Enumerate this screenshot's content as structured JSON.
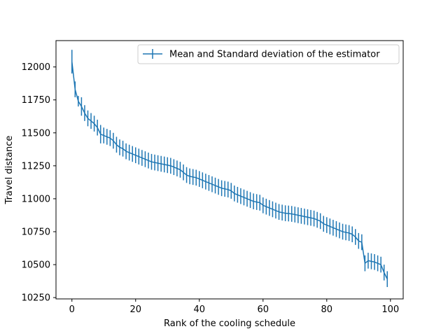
{
  "chart_data": {
    "type": "line",
    "title": "",
    "xlabel": "Rank of the cooling schedule",
    "ylabel": "Travel distance",
    "xlim": [
      -5,
      104
    ],
    "ylim": [
      10240,
      12200
    ],
    "x_ticks": [
      0,
      20,
      40,
      60,
      80,
      100
    ],
    "x_tick_labels": [
      "0",
      "20",
      "40",
      "60",
      "80",
      "100"
    ],
    "y_ticks": [
      10250,
      10500,
      10750,
      11000,
      11250,
      11500,
      11750,
      12000
    ],
    "y_tick_labels": [
      "10250",
      "10500",
      "10750",
      "11000",
      "11250",
      "11500",
      "11750",
      "12000"
    ],
    "grid": false,
    "legend": {
      "position": "top-right",
      "entries": [
        "Mean and Standard deviation of the estimator"
      ]
    },
    "series": [
      {
        "name": "Mean and Standard deviation of the estimator",
        "color": "#1f77b4",
        "x": [
          0,
          1,
          2,
          3,
          4,
          5,
          6,
          7,
          8,
          9,
          10,
          11,
          12,
          13,
          14,
          15,
          16,
          17,
          18,
          19,
          20,
          21,
          22,
          23,
          24,
          25,
          26,
          27,
          28,
          29,
          30,
          31,
          32,
          33,
          34,
          35,
          36,
          37,
          38,
          39,
          40,
          41,
          42,
          43,
          44,
          45,
          46,
          47,
          48,
          49,
          50,
          51,
          52,
          53,
          54,
          55,
          56,
          57,
          58,
          59,
          60,
          61,
          62,
          63,
          64,
          65,
          66,
          67,
          68,
          69,
          70,
          71,
          72,
          73,
          74,
          75,
          76,
          77,
          78,
          79,
          80,
          81,
          82,
          83,
          84,
          85,
          86,
          87,
          88,
          89,
          90,
          91,
          92,
          93,
          94,
          95,
          96,
          97,
          98,
          99
        ],
        "y": [
          12040,
          11830,
          11740,
          11700,
          11650,
          11610,
          11590,
          11570,
          11540,
          11490,
          11480,
          11470,
          11460,
          11440,
          11410,
          11390,
          11380,
          11360,
          11350,
          11340,
          11330,
          11320,
          11310,
          11300,
          11290,
          11280,
          11275,
          11270,
          11265,
          11260,
          11255,
          11250,
          11240,
          11230,
          11220,
          11200,
          11180,
          11170,
          11165,
          11160,
          11150,
          11140,
          11130,
          11120,
          11110,
          11100,
          11090,
          11080,
          11075,
          11070,
          11060,
          11040,
          11030,
          11020,
          11010,
          11000,
          10990,
          10980,
          10975,
          10970,
          10950,
          10940,
          10930,
          10920,
          10910,
          10900,
          10895,
          10890,
          10888,
          10885,
          10880,
          10875,
          10870,
          10865,
          10860,
          10855,
          10850,
          10840,
          10830,
          10810,
          10800,
          10790,
          10780,
          10770,
          10760,
          10750,
          10745,
          10740,
          10730,
          10710,
          10680,
          10670,
          10510,
          10530,
          10525,
          10520,
          10510,
          10500,
          10440,
          10390
        ],
        "yerr": [
          90,
          60,
          40,
          70,
          60,
          60,
          60,
          60,
          60,
          70,
          60,
          60,
          60,
          60,
          60,
          60,
          60,
          60,
          60,
          60,
          60,
          60,
          60,
          60,
          60,
          60,
          60,
          60,
          60,
          60,
          60,
          60,
          60,
          60,
          60,
          60,
          60,
          60,
          60,
          60,
          60,
          60,
          60,
          60,
          60,
          60,
          60,
          60,
          60,
          60,
          60,
          60,
          60,
          60,
          60,
          60,
          60,
          60,
          60,
          60,
          60,
          60,
          60,
          60,
          60,
          60,
          60,
          60,
          60,
          60,
          60,
          60,
          60,
          60,
          60,
          60,
          60,
          60,
          60,
          60,
          60,
          60,
          60,
          60,
          60,
          60,
          60,
          60,
          60,
          60,
          60,
          60,
          60,
          60,
          60,
          60,
          60,
          60,
          60,
          60
        ]
      }
    ]
  }
}
